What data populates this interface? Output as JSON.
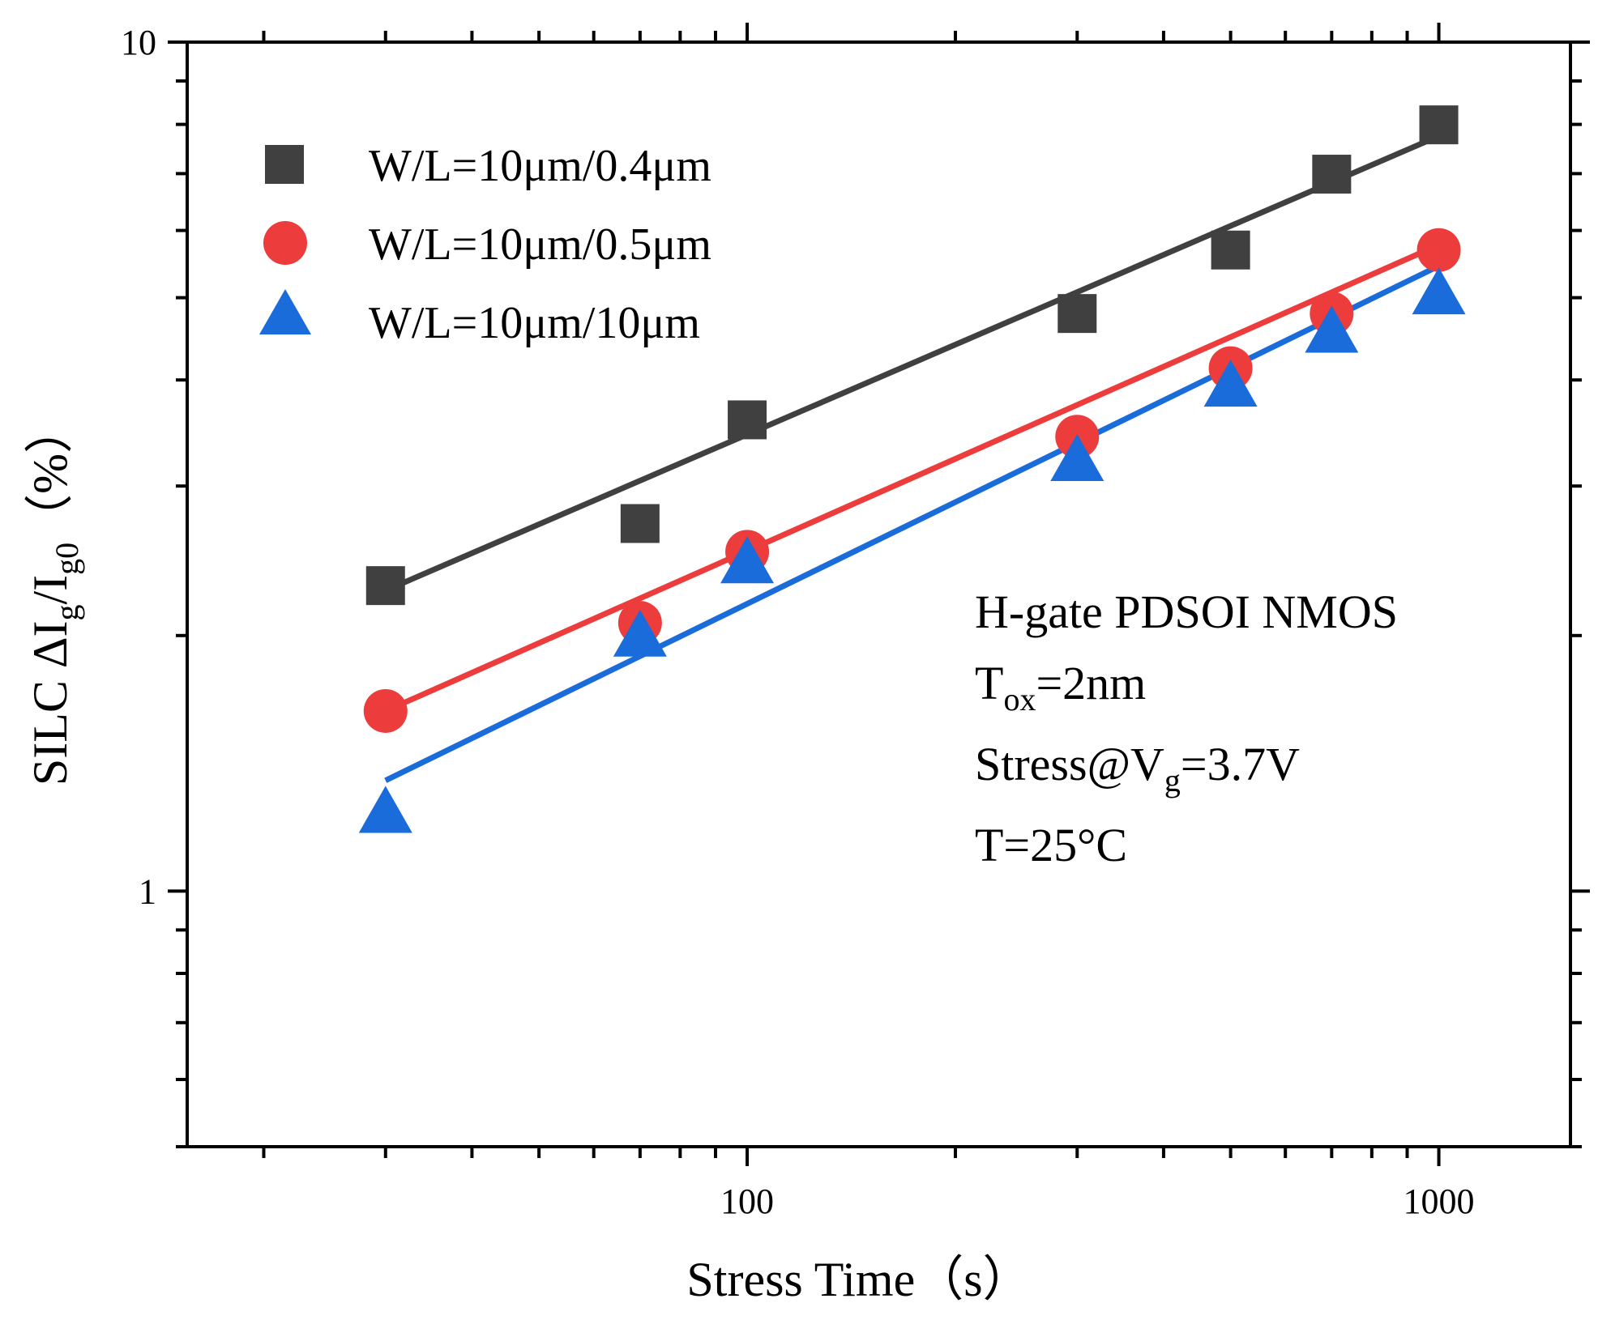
{
  "chart_data": {
    "type": "scatter",
    "xlabel": "Stress Time",
    "xunit": "（s）",
    "ylabel_parts": {
      "prefix": "SILC ΔI",
      "sub1": "g",
      "mid": "/I",
      "sub2": "g0",
      "unit": "（%）"
    },
    "x_scale": "log",
    "y_scale": "log",
    "xlim": [
      15.5,
      1550
    ],
    "ylim": [
      0.5,
      10
    ],
    "x_ticks": [
      100,
      1000
    ],
    "x_tick_labels": [
      "100",
      "1000"
    ],
    "y_ticks": [
      1,
      10
    ],
    "y_tick_labels": [
      "1",
      "10"
    ],
    "grid": false,
    "legend_position": "top-left",
    "series": [
      {
        "name": "W/L=10μm/0.4μm",
        "marker": "square",
        "color": "#404040",
        "x": [
          30,
          70,
          100,
          300,
          500,
          700,
          1000
        ],
        "y": [
          2.29,
          2.71,
          3.59,
          4.79,
          5.69,
          6.99,
          7.99
        ],
        "fit": {
          "x": [
            30,
            1000
          ],
          "y": [
            2.26,
            7.75
          ]
        }
      },
      {
        "name": "W/L=10μm/0.5μm",
        "marker": "circle",
        "color": "#ec3c3c",
        "x": [
          30,
          70,
          100,
          300,
          500,
          700,
          1000
        ],
        "y": [
          1.63,
          2.07,
          2.51,
          3.43,
          4.13,
          4.79,
          5.69
        ],
        "fit": {
          "x": [
            30,
            1000
          ],
          "y": [
            1.63,
            5.77
          ]
        }
      },
      {
        "name": "W/L=10μm/10μm",
        "marker": "triangle",
        "color": "#1a6cdb",
        "x": [
          30,
          70,
          100,
          300,
          500,
          700,
          1000
        ],
        "y": [
          1.24,
          2.0,
          2.44,
          3.22,
          3.94,
          4.56,
          5.06
        ],
        "fit": {
          "x": [
            30,
            1000
          ],
          "y": [
            1.35,
            5.45
          ]
        }
      }
    ],
    "annotation": {
      "line1": "H-gate PDSOI NMOS",
      "line2_main": "T",
      "line2_sub": "ox",
      "line2_rest": "=2nm",
      "line3_main": "Stress@V",
      "line3_sub": "g",
      "line3_rest": "=3.7V",
      "line4": "T=25°C"
    }
  }
}
